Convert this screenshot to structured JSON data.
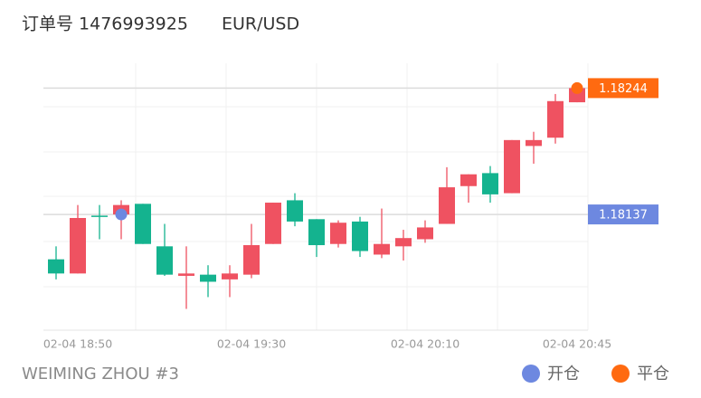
{
  "chart_data": {
    "type": "candlestick",
    "title": "订单号 1476993925",
    "symbol": "EUR/USD",
    "footer": "WEIMING ZHOU #3",
    "categories": [
      null,
      "02-04 18:50",
      null,
      null,
      null,
      null,
      null,
      null,
      null,
      "02-04 19:30",
      null,
      null,
      null,
      null,
      null,
      null,
      null,
      "02-04 20:10",
      null,
      null,
      null,
      null,
      null,
      null,
      "02-04 20:45"
    ],
    "open": [
      1.18099,
      1.18087,
      1.18136,
      1.18137,
      1.18146,
      1.1811,
      1.18085,
      1.18086,
      1.18082,
      1.18086,
      1.18112,
      1.18149,
      1.18133,
      1.18112,
      1.18131,
      1.18103,
      1.1811,
      1.18116,
      1.18129,
      1.18161,
      1.18172,
      1.18155,
      1.18195,
      1.18202,
      1.18232
    ],
    "high": [
      1.1811,
      1.18145,
      1.18145,
      1.18149,
      1.18146,
      1.18129,
      1.1811,
      1.18094,
      1.18094,
      1.18129,
      1.18147,
      1.18155,
      1.18133,
      1.18132,
      1.18135,
      1.18142,
      1.18124,
      1.18132,
      1.18177,
      1.18171,
      1.18178,
      1.182,
      1.18207,
      1.18239,
      1.18245
    ],
    "low": [
      1.18082,
      1.18087,
      1.18116,
      1.18116,
      1.18112,
      1.18085,
      1.18057,
      1.18067,
      1.18067,
      1.18083,
      1.18112,
      1.18127,
      1.18101,
      1.18109,
      1.18101,
      1.181,
      1.18098,
      1.18113,
      1.18129,
      1.18147,
      1.18147,
      1.18155,
      1.1818,
      1.18197,
      1.18232
    ],
    "close": [
      1.18087,
      1.18134,
      1.18135,
      1.18145,
      1.18112,
      1.18086,
      1.18087,
      1.1808,
      1.18087,
      1.18111,
      1.18147,
      1.18131,
      1.18111,
      1.1813,
      1.18106,
      1.18112,
      1.18117,
      1.18126,
      1.1816,
      1.18171,
      1.18154,
      1.182,
      1.182,
      1.18233,
      1.18244
    ],
    "up_color": "#ef5261",
    "down_color": "#14b38f",
    "ylim": [
      1.18039,
      1.18265
    ],
    "markers": [
      {
        "name": "开仓",
        "color": "#6d88e0",
        "value": 1.18137,
        "index": 3
      },
      {
        "name": "平仓",
        "color": "#ff6a10",
        "value": 1.18244,
        "index": 24
      }
    ]
  }
}
